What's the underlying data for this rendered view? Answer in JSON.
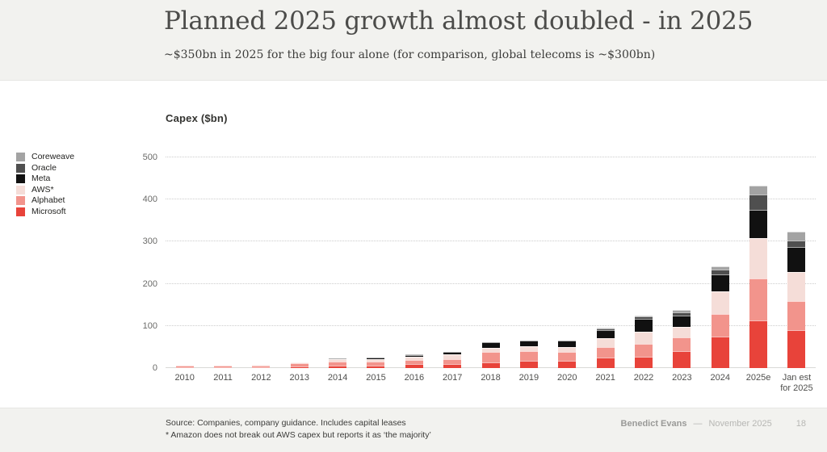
{
  "header": {
    "title": "Planned 2025 growth almost doubled - in 2025",
    "subtitle": "~$350bn in 2025 for the big four alone (for comparison, global telecoms is ~$300bn)"
  },
  "chart_data": {
    "type": "bar",
    "stacked": true,
    "title": "Capex ($bn)",
    "xlabel": "",
    "ylabel": "Capex ($bn)",
    "ylim": [
      0,
      500
    ],
    "yticks": [
      0,
      100,
      200,
      300,
      400,
      500
    ],
    "grid": "dotted horizontal",
    "legend_position": "left",
    "categories": [
      "2010",
      "2011",
      "2012",
      "2013",
      "2014",
      "2015",
      "2016",
      "2017",
      "2018",
      "2019",
      "2020",
      "2021",
      "2022",
      "2023",
      "2024",
      "2025e",
      "Jan est\nfor 2025"
    ],
    "series": [
      {
        "name": "Microsoft",
        "color": "#e8433a",
        "values": [
          2,
          2,
          2,
          4,
          5,
          6,
          9,
          9,
          14,
          17,
          17,
          24,
          26,
          40,
          75,
          113,
          90
        ]
      },
      {
        "name": "Alphabet",
        "color": "#f2948c",
        "values": [
          4,
          3,
          3,
          7,
          11,
          10,
          10,
          13,
          25,
          24,
          22,
          25,
          32,
          32,
          53,
          100,
          70
        ]
      },
      {
        "name": "AWS*",
        "color": "#f5ddd8",
        "values": [
          0,
          0,
          2,
          2,
          5,
          5,
          7,
          10,
          8,
          10,
          10,
          22,
          28,
          26,
          55,
          95,
          68
        ]
      },
      {
        "name": "Meta",
        "color": "#111111",
        "values": [
          0,
          1,
          1,
          1,
          2,
          3,
          5,
          7,
          14,
          15,
          16,
          19,
          31,
          27,
          40,
          68,
          60
        ]
      },
      {
        "name": "Oracle",
        "color": "#4f4f4f",
        "values": [
          0,
          0,
          0,
          0,
          0,
          0,
          2,
          0,
          0,
          0,
          0,
          4,
          5,
          7,
          10,
          36,
          15
        ]
      },
      {
        "name": "Coreweave",
        "color": "#a3a3a3",
        "values": [
          0,
          0,
          0,
          0,
          0,
          0,
          0,
          0,
          0,
          0,
          0,
          1,
          2,
          6,
          9,
          21,
          20
        ]
      }
    ],
    "totals": [
      6,
      6,
      8,
      14,
      23,
      24,
      33,
      39,
      61,
      66,
      65,
      95,
      124,
      138,
      242,
      433,
      323
    ]
  },
  "footer": {
    "source_line1": "Source: Companies, company guidance. Includes capital leases",
    "source_line2": "* Amazon does not break out AWS capex but reports it as ‘the majority’",
    "author": "Benedict Evans",
    "dash": "—",
    "date": "November 2025",
    "page_number": "18"
  }
}
